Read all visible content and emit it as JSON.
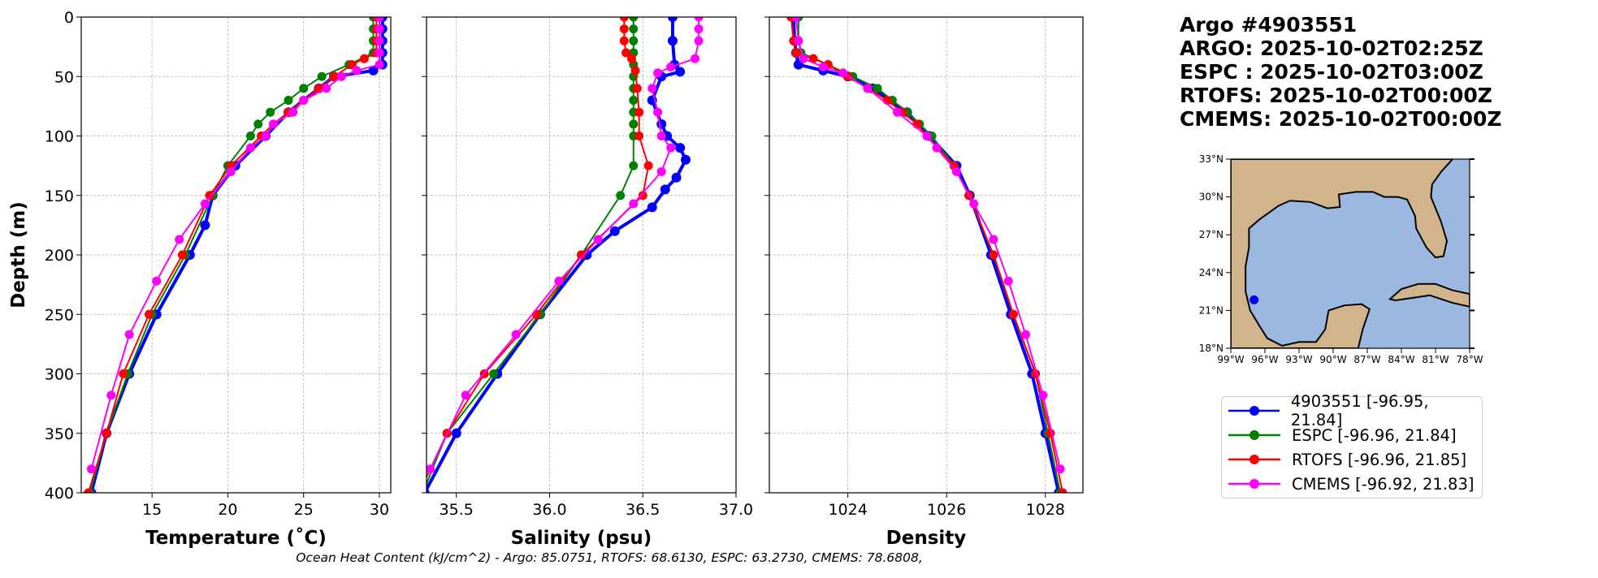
{
  "info": {
    "title": "Argo #4903551",
    "lines": [
      "ARGO: 2025-10-02T02:25Z",
      "ESPC : 2025-10-02T03:00Z",
      "RTOFS: 2025-10-02T00:00Z",
      "CMEMS: 2025-10-02T00:00Z"
    ]
  },
  "caption": "Ocean Heat Content (kJ/cm^2) - Argo: 85.0751,  RTOFS: 68.6130,  ESPC: 63.2730,  CMEMS: 78.6808,",
  "legend": [
    {
      "label": "4903551 [-96.95, 21.84]",
      "color": "#0000ff"
    },
    {
      "label": "ESPC [-96.96, 21.84]",
      "color": "#008000"
    },
    {
      "label": "RTOFS [-96.96, 21.85]",
      "color": "#ff0000"
    },
    {
      "label": "CMEMS [-96.92, 21.83]",
      "color": "#ff00ff"
    }
  ],
  "map": {
    "lon_ticks": [
      "99°W",
      "96°W",
      "93°W",
      "90°W",
      "87°W",
      "84°W",
      "81°W",
      "78°W"
    ],
    "lat_ticks": [
      "18°N",
      "21°N",
      "24°N",
      "27°N",
      "30°N",
      "33°N"
    ],
    "lon_range": [
      -99,
      -78
    ],
    "lat_range": [
      18,
      33
    ],
    "float_position": [
      -96.95,
      21.84
    ],
    "land_color": "#d2b48c",
    "water_color": "#9bb8e0"
  },
  "chart_data": [
    {
      "type": "line",
      "xlabel": "Temperature (˚C)",
      "ylabel": "Depth (m)",
      "xlim": [
        10.33,
        30.75
      ],
      "ylim": [
        400,
        0
      ],
      "xticks": [
        "15",
        "20",
        "25",
        "30"
      ],
      "yticks": [
        "0",
        "50",
        "100",
        "150",
        "200",
        "250",
        "300",
        "350",
        "400"
      ],
      "grid": true,
      "series": [
        {
          "name": "4903551",
          "depth": [
            0,
            10,
            20,
            30,
            40,
            45,
            50,
            60,
            80,
            100,
            125,
            150,
            175,
            200,
            250,
            300,
            350,
            400
          ],
          "values": [
            30.2,
            30.2,
            30.2,
            30.2,
            30.2,
            29.6,
            27,
            26,
            24,
            22.5,
            20.5,
            19,
            18.5,
            17.5,
            15.3,
            13.5,
            12,
            11
          ]
        },
        {
          "name": "ESPC",
          "depth": [
            0,
            10,
            20,
            30,
            40,
            50,
            60,
            70,
            80,
            90,
            100,
            125,
            150,
            200,
            250,
            300,
            350,
            400
          ],
          "values": [
            29.6,
            29.6,
            29.6,
            29.6,
            28,
            26.2,
            25,
            24,
            22.8,
            22,
            21.5,
            20,
            19,
            17.2,
            15,
            13.4,
            12,
            10.9
          ]
        },
        {
          "name": "RTOFS",
          "depth": [
            0,
            10,
            20,
            30,
            35,
            40,
            50,
            60,
            70,
            80,
            90,
            100,
            125,
            150,
            200,
            250,
            300,
            350,
            400
          ],
          "values": [
            29.8,
            29.8,
            29.8,
            29.8,
            29,
            28.2,
            27,
            26,
            25,
            24,
            23,
            22.2,
            20.2,
            18.8,
            17,
            14.8,
            13.1,
            12,
            10.8
          ]
        },
        {
          "name": "CMEMS",
          "depth": [
            0,
            10,
            20,
            30,
            40,
            45,
            50,
            60,
            70,
            80,
            90,
            100,
            110,
            130,
            157,
            187,
            222,
            267,
            318,
            380
          ],
          "values": [
            30,
            30,
            30,
            30,
            30,
            28.5,
            27.5,
            26.5,
            25,
            24.3,
            23,
            22.5,
            21.5,
            20.2,
            18.5,
            16.8,
            15.3,
            13.5,
            12.3,
            11
          ]
        }
      ]
    },
    {
      "type": "line",
      "xlabel": "Salinity (psu)",
      "xlim": [
        35.34,
        37.0
      ],
      "ylim": [
        400,
        0
      ],
      "xticks": [
        "35.5",
        "36.0",
        "36.5",
        "37.0"
      ],
      "grid": true,
      "series": [
        {
          "name": "4903551",
          "depth": [
            0,
            20,
            40,
            46,
            50,
            70,
            90,
            100,
            110,
            120,
            135,
            145,
            160,
            180,
            200,
            250,
            300,
            350,
            400
          ],
          "values": [
            36.66,
            36.66,
            36.67,
            36.7,
            36.6,
            36.55,
            36.6,
            36.63,
            36.7,
            36.73,
            36.68,
            36.62,
            36.55,
            36.35,
            36.2,
            35.95,
            35.72,
            35.5,
            35.33
          ]
        },
        {
          "name": "ESPC",
          "depth": [
            0,
            10,
            20,
            30,
            40,
            50,
            60,
            70,
            80,
            90,
            100,
            125,
            150,
            200,
            250,
            300,
            350,
            400
          ],
          "values": [
            36.45,
            36.45,
            36.45,
            36.45,
            36.45,
            36.45,
            36.45,
            36.45,
            36.45,
            36.45,
            36.45,
            36.45,
            36.38,
            36.17,
            35.95,
            35.7,
            35.45,
            35.32
          ]
        },
        {
          "name": "RTOFS",
          "depth": [
            0,
            10,
            20,
            30,
            35,
            45,
            60,
            80,
            100,
            125,
            150,
            200,
            250,
            300,
            350,
            400
          ],
          "values": [
            36.4,
            36.4,
            36.4,
            36.41,
            36.44,
            36.46,
            36.47,
            36.48,
            36.48,
            36.53,
            36.5,
            36.17,
            35.93,
            35.65,
            35.45,
            35.3
          ]
        },
        {
          "name": "CMEMS",
          "depth": [
            0,
            10,
            20,
            35,
            42,
            47,
            60,
            80,
            100,
            110,
            130,
            157,
            187,
            222,
            267,
            318,
            380
          ],
          "values": [
            36.8,
            36.8,
            36.8,
            36.78,
            36.65,
            36.58,
            36.55,
            36.58,
            36.6,
            36.65,
            36.6,
            36.45,
            36.26,
            36.05,
            35.82,
            35.55,
            35.36
          ]
        }
      ]
    },
    {
      "type": "line",
      "xlabel": "Density",
      "xlim": [
        1022.41,
        1028.76
      ],
      "ylim": [
        400,
        0
      ],
      "xticks": [
        "1024",
        "1026",
        "1028"
      ],
      "grid": true,
      "series": [
        {
          "name": "4903551",
          "depth": [
            0,
            20,
            30,
            40,
            45,
            50,
            60,
            80,
            100,
            125,
            150,
            200,
            250,
            300,
            350,
            400
          ],
          "values": [
            1022.9,
            1022.92,
            1022.95,
            1023.0,
            1023.5,
            1024.0,
            1024.5,
            1025.2,
            1025.65,
            1026.2,
            1026.47,
            1026.9,
            1027.3,
            1027.73,
            1028.0,
            1028.27
          ]
        },
        {
          "name": "ESPC",
          "depth": [
            0,
            20,
            30,
            40,
            50,
            60,
            70,
            80,
            90,
            100,
            125,
            150,
            200,
            250,
            300,
            350,
            400
          ],
          "values": [
            1023.0,
            1023.0,
            1023.05,
            1023.6,
            1024.1,
            1024.6,
            1024.9,
            1025.2,
            1025.45,
            1025.7,
            1026.15,
            1026.45,
            1026.95,
            1027.35,
            1027.8,
            1028.05,
            1028.3
          ]
        },
        {
          "name": "RTOFS",
          "depth": [
            0,
            20,
            30,
            35,
            40,
            50,
            60,
            70,
            80,
            90,
            100,
            125,
            150,
            200,
            250,
            300,
            350,
            400
          ],
          "values": [
            1022.85,
            1022.9,
            1022.95,
            1023.3,
            1023.6,
            1024.0,
            1024.4,
            1024.8,
            1025.1,
            1025.4,
            1025.6,
            1026.15,
            1026.45,
            1026.95,
            1027.35,
            1027.8,
            1028.1,
            1028.35
          ]
        },
        {
          "name": "CMEMS",
          "depth": [
            0,
            20,
            35,
            42,
            47,
            60,
            80,
            100,
            110,
            130,
            157,
            187,
            222,
            267,
            318,
            380
          ],
          "values": [
            1022.95,
            1023.0,
            1023.1,
            1023.5,
            1023.9,
            1024.4,
            1025.0,
            1025.6,
            1025.8,
            1026.2,
            1026.55,
            1026.95,
            1027.25,
            1027.6,
            1027.95,
            1028.3
          ]
        }
      ]
    }
  ]
}
